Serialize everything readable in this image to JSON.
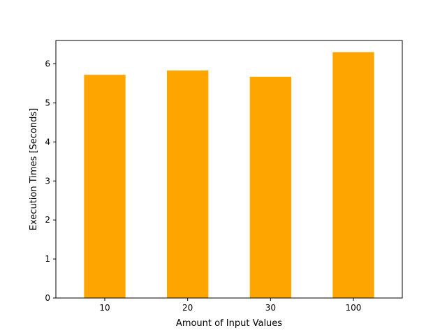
{
  "chart_data": {
    "type": "bar",
    "categories": [
      "10",
      "20",
      "30",
      "100"
    ],
    "values": [
      5.72,
      5.83,
      5.67,
      6.3
    ],
    "title": "",
    "xlabel": "Amount of Input Values",
    "ylabel": "Execution Times [Seconds]",
    "ylim": [
      0,
      6.6
    ],
    "yticks": [
      0,
      1,
      2,
      3,
      4,
      5,
      6
    ],
    "grid": false,
    "bar_color": "#ffa500"
  }
}
